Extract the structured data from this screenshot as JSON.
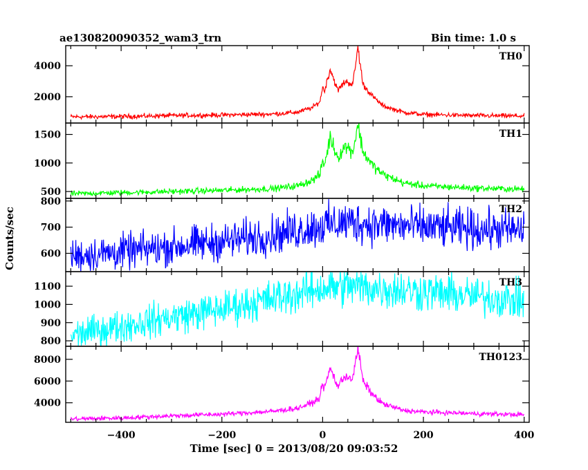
{
  "header": {
    "title": "ae130820090352_wam3_trn",
    "bin_time": "Bin time: 1.0 s"
  },
  "chart_data": {
    "type": "line",
    "title": "ae130820090352_wam3_trn",
    "xlabel": "Time [sec] 0 = 2013/08/20 09:03:52",
    "ylabel": "Counts/sec",
    "xlim": [
      -510,
      410
    ],
    "x_ticks": [
      -400,
      -200,
      0,
      200,
      400
    ],
    "x_tick_labels": [
      "−400",
      "−200",
      "0",
      "200",
      "400"
    ],
    "grid": false,
    "panels": [
      {
        "name": "TH0",
        "color": "#ff0000",
        "ylim": [
          300,
          5300
        ],
        "y_ticks": [
          2000,
          4000
        ],
        "y_tick_labels": [
          "2000",
          "4000"
        ],
        "series": [
          {
            "name": "TH0",
            "x": [
              -500,
              -400,
              -300,
              -200,
              -100,
              -50,
              -20,
              -5,
              0,
              3,
              15,
              30,
              45,
              60,
              70,
              80,
              100,
              120,
              160,
              200,
              300,
              400
            ],
            "y": [
              700,
              720,
              780,
              820,
              880,
              1000,
              1300,
              1700,
              2700,
              2300,
              3800,
              2400,
              3000,
              2800,
              5200,
              2800,
              2000,
              1400,
              1000,
              850,
              780,
              750
            ]
          }
        ]
      },
      {
        "name": "TH1",
        "color": "#00ff00",
        "ylim": [
          380,
          1700
        ],
        "y_ticks": [
          500,
          1000,
          1500
        ],
        "y_tick_labels": [
          "500",
          "1000",
          "1500"
        ],
        "series": [
          {
            "name": "TH1",
            "x": [
              -500,
              -400,
              -300,
              -200,
              -100,
              -50,
              -20,
              -5,
              0,
              3,
              15,
              30,
              45,
              60,
              70,
              80,
              100,
              120,
              160,
              200,
              300,
              400
            ],
            "y": [
              460,
              480,
              500,
              520,
              550,
              600,
              700,
              800,
              1050,
              950,
              1450,
              1100,
              1300,
              1200,
              1680,
              1200,
              950,
              800,
              650,
              600,
              560,
              540
            ]
          }
        ]
      },
      {
        "name": "TH2",
        "color": "#0000ff",
        "ylim": [
          530,
          810
        ],
        "y_ticks": [
          600,
          700,
          800
        ],
        "y_tick_labels": [
          "600",
          "700",
          "800"
        ],
        "series": [
          {
            "name": "TH2",
            "x": [
              -500,
              -400,
              -300,
              -200,
              -100,
              0,
              50,
              100,
              200,
              300,
              400
            ],
            "y": [
              590,
              605,
              625,
              645,
              670,
              705,
              720,
              712,
              700,
              692,
              688
            ]
          }
        ]
      },
      {
        "name": "TH3",
        "color": "#00ffff",
        "ylim": [
          770,
          1180
        ],
        "y_ticks": [
          800,
          900,
          1000,
          1100
        ],
        "y_tick_labels": [
          "800",
          "900",
          "1000",
          "1100"
        ],
        "series": [
          {
            "name": "TH3",
            "x": [
              -500,
              -400,
              -300,
              -200,
              -100,
              0,
              50,
              100,
              200,
              300,
              400
            ],
            "y": [
              830,
              880,
              930,
              975,
              1030,
              1090,
              1100,
              1090,
              1070,
              1045,
              1020
            ]
          }
        ]
      },
      {
        "name": "TH0123",
        "color": "#ff00ff",
        "ylim": [
          2200,
          9200
        ],
        "y_ticks": [
          4000,
          6000,
          8000
        ],
        "y_tick_labels": [
          "4000",
          "6000",
          "8000"
        ],
        "series": [
          {
            "name": "TH0123",
            "x": [
              -500,
              -400,
              -300,
              -200,
              -100,
              -50,
              -20,
              -5,
              0,
              3,
              15,
              30,
              45,
              60,
              70,
              80,
              100,
              120,
              160,
              200,
              300,
              400
            ],
            "y": [
              2500,
              2600,
              2800,
              2950,
              3200,
              3500,
              4000,
              4500,
              6000,
              5200,
              7200,
              5500,
              6500,
              6200,
              9100,
              6000,
              4700,
              3900,
              3300,
              3150,
              3000,
              2900
            ]
          }
        ]
      }
    ]
  }
}
